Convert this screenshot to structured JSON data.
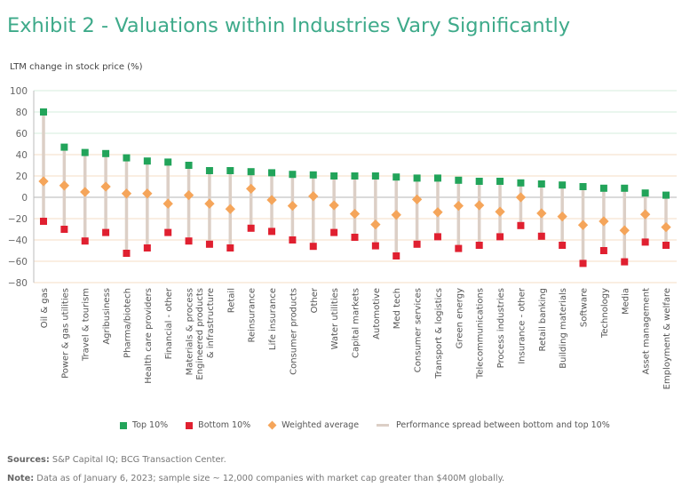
{
  "chart_data": {
    "type": "scatter",
    "title": "Exhibit 2 - Valuations within Industries Vary Significantly",
    "ylabel": "LTM change in stock price (%)",
    "xlabel": "",
    "ylim": [
      -80,
      100
    ],
    "yticks": [
      100,
      80,
      60,
      40,
      20,
      0,
      -20,
      -40,
      -60,
      -80
    ],
    "grid": true,
    "legend_position": "bottom",
    "categories": [
      "Oil & gas",
      "Power & gas utilities",
      "Travel & tourism",
      "Agribusiness",
      "Pharma/biotech",
      "Health care providers",
      "Financial - other",
      "Materials & process",
      "Engineered products\n& infrastructure",
      "Retail",
      "Reinsurance",
      "Life insurance",
      "Consumer products",
      "Other",
      "Water utilities",
      "Capital markets",
      "Automotive",
      "Med tech",
      "Consumer services",
      "Transport & logistics",
      "Green energy",
      "Telecommunications",
      "Process industries",
      "Insurance - other",
      "Retail banking",
      "Building materials",
      "Software",
      "Technology",
      "Media",
      "Asset management",
      "Employment & welfare"
    ],
    "series": [
      {
        "name": "Top 10%",
        "marker": "square",
        "color": "#22a45a",
        "values": [
          80,
          47,
          42,
          41,
          37,
          34,
          33,
          30,
          25,
          25,
          24,
          23,
          21.5,
          21,
          20,
          20,
          20,
          19,
          18,
          18,
          16,
          15,
          15,
          13.5,
          12.5,
          11.5,
          10,
          8.5,
          8.5,
          4,
          2
        ]
      },
      {
        "name": "Bottom 10%",
        "marker": "square",
        "color": "#e02030",
        "values": [
          -22.5,
          -30,
          -41,
          -33,
          -52.5,
          -47.5,
          -33,
          -41,
          -44,
          -47.5,
          -29,
          -32,
          -40,
          -46,
          -33,
          -37.5,
          -45.5,
          -55,
          -44,
          -37,
          -48,
          -45,
          -37,
          -26.5,
          -36.5,
          -45,
          -62,
          -50,
          -60.5,
          -42,
          -45
        ]
      },
      {
        "name": "Weighted average",
        "marker": "diamond",
        "color": "#f5a55a",
        "values": [
          15,
          11,
          5,
          10,
          3.5,
          3.5,
          -6,
          2,
          -6,
          -11,
          8,
          -2.5,
          -8,
          1,
          -7.5,
          -15.5,
          -25.5,
          -16.5,
          -2,
          -14,
          -8,
          -7.5,
          -13.5,
          0,
          -15,
          -18,
          -26,
          -22.5,
          -31,
          -16,
          -28
        ]
      }
    ],
    "spread": {
      "name": "Performance spread between bottom and top 10%",
      "color": "#dccfc6"
    },
    "gridline_colors": {
      "positive_high": "#d6eedd",
      "mid": "#f5dcc6",
      "zero": "#b5b5b5"
    }
  },
  "header": {
    "title": "Exhibit 2 - Valuations within Industries Vary Significantly",
    "ylabel": "LTM change in stock price (%)"
  },
  "legend": {
    "top": "Top 10%",
    "bottom": "Bottom 10%",
    "average": "Weighted average",
    "spread": "Performance spread between bottom and top 10%"
  },
  "footer": {
    "sources_label": "Sources:",
    "sources_text": " S&P Capital IQ; BCG Transaction Center.",
    "note_label": "Note:",
    "note_text": " Data as of January 6, 2023; sample size ~ 12,000 companies with market cap greater than $400M globally."
  }
}
